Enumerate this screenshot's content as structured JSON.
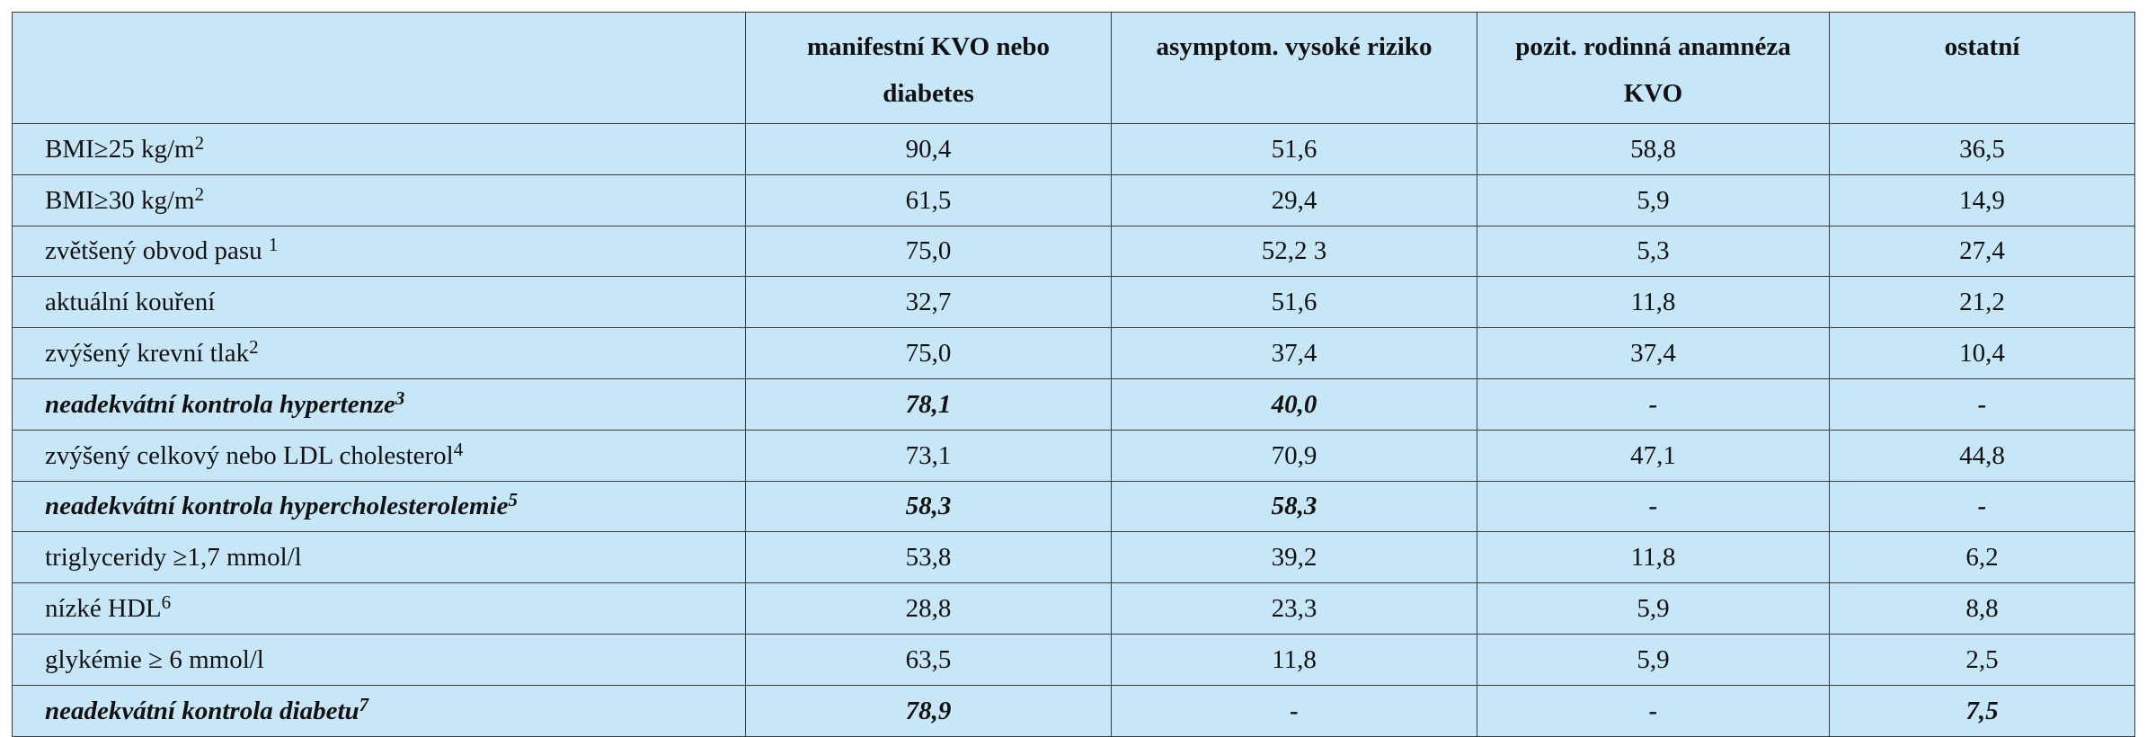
{
  "table": {
    "headers": [
      "",
      "manifestní KVO nebo diabetes",
      "asymptom. vysoké riziko",
      "pozit. rodinná anamnéza KVO",
      "ostatní"
    ],
    "rows": [
      {
        "label": "BMI≥25 kg/m",
        "label_sup": "2",
        "emphasis": false,
        "values": [
          "90,4",
          "51,6",
          "58,8",
          "36,5"
        ]
      },
      {
        "label": "BMI≥30 kg/m",
        "label_sup": "2",
        "emphasis": false,
        "values": [
          "61,5",
          "29,4",
          "5,9",
          "14,9"
        ]
      },
      {
        "label": "zvětšený obvod pasu ",
        "label_sup": "1",
        "emphasis": false,
        "values": [
          "75,0",
          "52,2 3",
          "5,3",
          "27,4"
        ]
      },
      {
        "label": "aktuální kouření",
        "label_sup": "",
        "emphasis": false,
        "values": [
          "32,7",
          "51,6",
          "11,8",
          "21,2"
        ]
      },
      {
        "label": "zvýšený krevní tlak",
        "label_sup": "2",
        "emphasis": false,
        "values": [
          "75,0",
          "37,4",
          "37,4",
          "10,4"
        ]
      },
      {
        "label": "neadekvátní kontrola hypertenze",
        "label_sup": "3",
        "emphasis": true,
        "values": [
          "78,1",
          "40,0",
          "-",
          "-"
        ]
      },
      {
        "label": "zvýšený celkový nebo LDL cholesterol",
        "label_sup": "4",
        "emphasis": false,
        "values": [
          "73,1",
          "70,9",
          "47,1",
          "44,8"
        ]
      },
      {
        "label": "neadekvátní kontrola hypercholesterolemie",
        "label_sup": "5",
        "emphasis": true,
        "values": [
          "58,3",
          "58,3",
          "-",
          "-"
        ]
      },
      {
        "label": "triglyceridy ≥1,7 mmol/l",
        "label_sup": "",
        "emphasis": false,
        "values": [
          "53,8",
          "39,2",
          "11,8",
          "6,2"
        ]
      },
      {
        "label": "nízké HDL",
        "label_sup": "6",
        "emphasis": false,
        "values": [
          "28,8",
          "23,3",
          "5,9",
          "8,8"
        ]
      },
      {
        "label": "glykémie ≥ 6 mmol/l",
        "label_sup": "",
        "emphasis": false,
        "values": [
          "63,5",
          "11,8",
          "5,9",
          "2,5"
        ]
      },
      {
        "label": "neadekvátní kontrola diabetu",
        "label_sup": "7",
        "emphasis": true,
        "values": [
          "78,9",
          "-",
          "-",
          "7,5"
        ]
      }
    ]
  },
  "colors": {
    "cell_background": "#c7e7f8",
    "border": "#3a3a3a",
    "text": "#111111"
  }
}
